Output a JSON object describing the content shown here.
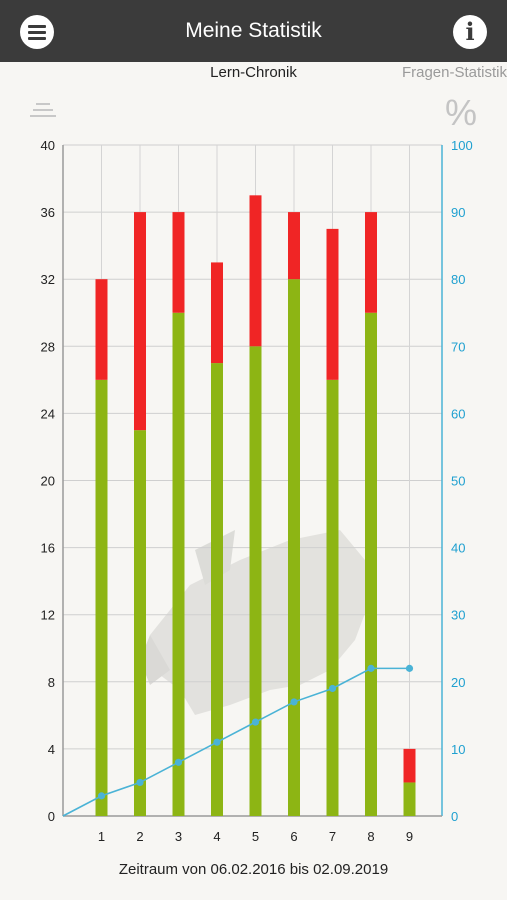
{
  "header": {
    "title": "Meine Statistik",
    "menu_icon": "menu-icon",
    "info_icon": "info-icon",
    "info_glyph": "i"
  },
  "tabs": {
    "active": "Lern-Chronik",
    "inactive": "Fragen-Statistik"
  },
  "view_icons": {
    "list": "list-icon",
    "percent": "percent-icon",
    "percent_glyph": "%"
  },
  "footer": {
    "period": "Zeitraum von 06.02.2016 bis 02.09.2019"
  },
  "chart_data": {
    "type": "bar",
    "stacked": true,
    "categories": [
      "1",
      "2",
      "3",
      "4",
      "5",
      "6",
      "7",
      "8",
      "9"
    ],
    "series": [
      {
        "color": "#8db514",
        "values": [
          26,
          23,
          30,
          27,
          28,
          32,
          26,
          30,
          2
        ]
      },
      {
        "color": "#f02525",
        "values": [
          6,
          13,
          6,
          6,
          9,
          4,
          9,
          6,
          2
        ]
      }
    ],
    "line": {
      "color": "#4ab3d6",
      "axis": "right",
      "x": [
        0,
        1,
        2,
        3,
        4,
        5,
        6,
        7,
        8,
        9
      ],
      "values": [
        0,
        3,
        5,
        8,
        11,
        14,
        17,
        19,
        22,
        22
      ],
      "markers_from_index": 1
    },
    "left_axis": {
      "ylim": [
        0,
        40
      ],
      "ticks": [
        0,
        4,
        8,
        12,
        16,
        20,
        24,
        28,
        32,
        36,
        40
      ]
    },
    "right_axis": {
      "ylim": [
        0,
        100
      ],
      "ticks": [
        0,
        10,
        20,
        30,
        40,
        50,
        60,
        70,
        80,
        90,
        100
      ],
      "color": "#1fa0d0"
    },
    "grid": true
  }
}
